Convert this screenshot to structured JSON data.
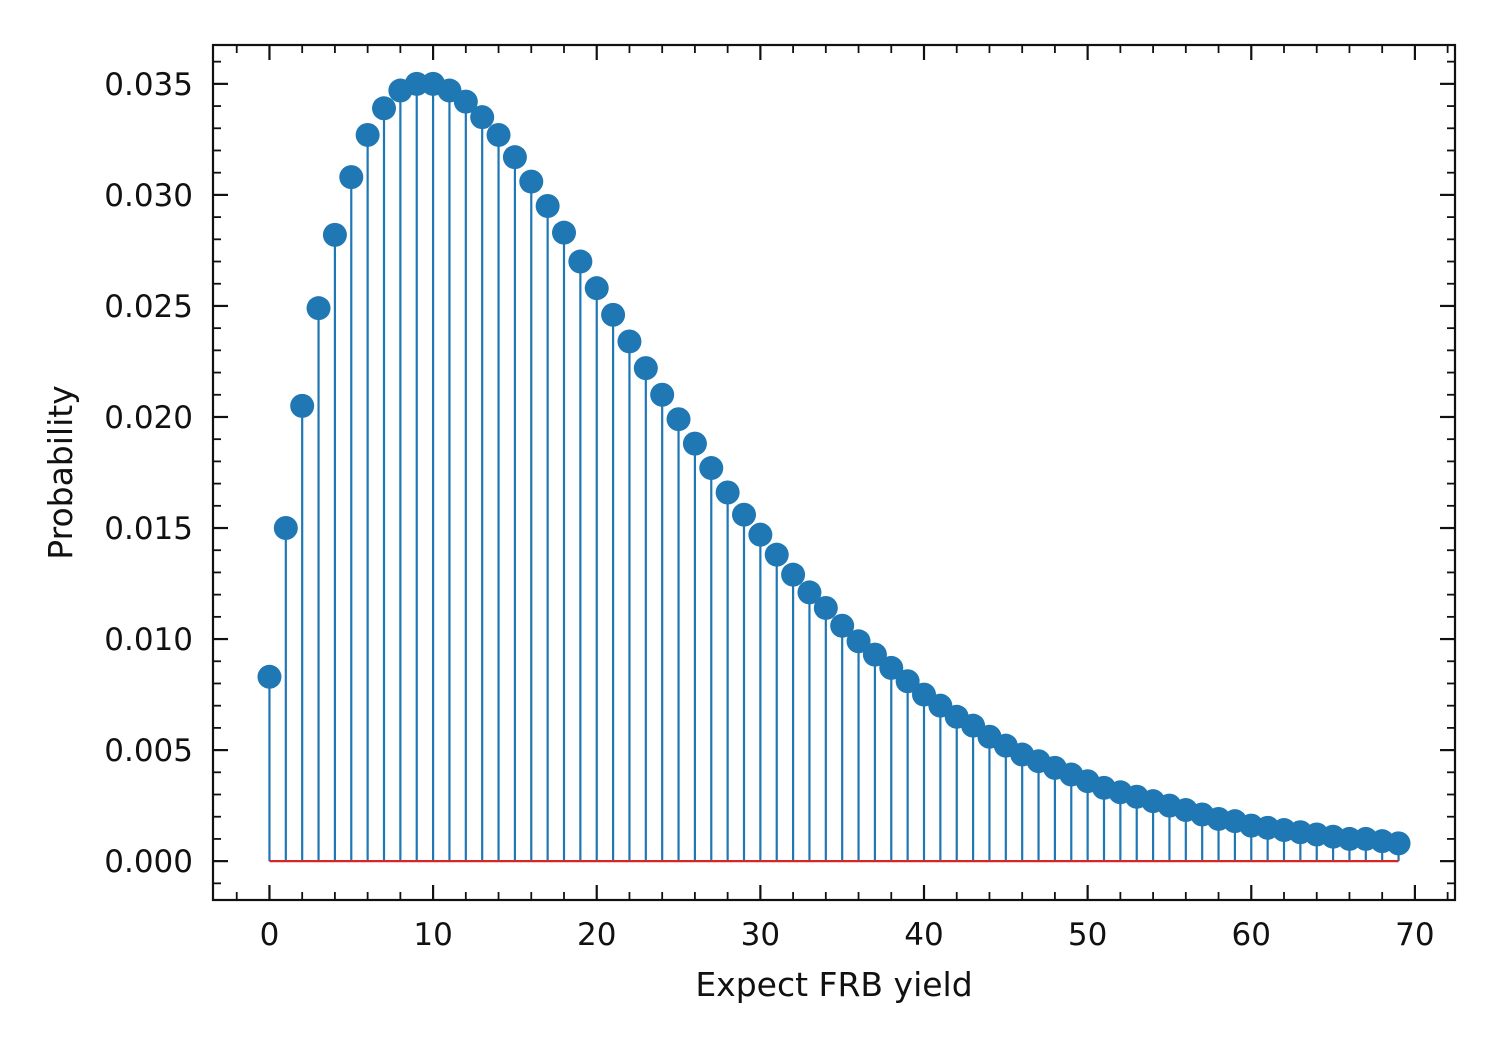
{
  "chart_data": {
    "type": "stem",
    "title": "",
    "xlabel": "Expect FRB yield",
    "ylabel": "Probability",
    "xlim": [
      -3.45,
      72.45
    ],
    "ylim": [
      -0.00175,
      0.03675
    ],
    "x_ticks": [
      0,
      10,
      20,
      30,
      40,
      50,
      60,
      70
    ],
    "x_tick_labels": [
      "0",
      "10",
      "20",
      "30",
      "40",
      "50",
      "60",
      "70"
    ],
    "y_ticks": [
      0.0,
      0.005,
      0.01,
      0.015,
      0.02,
      0.025,
      0.03,
      0.035
    ],
    "y_tick_labels": [
      "0.000",
      "0.005",
      "0.010",
      "0.015",
      "0.020",
      "0.025",
      "0.030",
      "0.035"
    ],
    "grid": false,
    "legend": "none",
    "baseline": 0,
    "colors": {
      "stem": "#1f77b4",
      "marker": "#1f77b4",
      "baseline": "#d62728",
      "axis": "#111111"
    },
    "x": [
      0,
      1,
      2,
      3,
      4,
      5,
      6,
      7,
      8,
      9,
      10,
      11,
      12,
      13,
      14,
      15,
      16,
      17,
      18,
      19,
      20,
      21,
      22,
      23,
      24,
      25,
      26,
      27,
      28,
      29,
      30,
      31,
      32,
      33,
      34,
      35,
      36,
      37,
      38,
      39,
      40,
      41,
      42,
      43,
      44,
      45,
      46,
      47,
      48,
      49,
      50,
      51,
      52,
      53,
      54,
      55,
      56,
      57,
      58,
      59,
      60,
      61,
      62,
      63,
      64,
      65,
      66,
      67,
      68,
      69
    ],
    "values": [
      0.0083,
      0.015,
      0.0205,
      0.0249,
      0.0282,
      0.0308,
      0.0327,
      0.0339,
      0.0347,
      0.035,
      0.035,
      0.0347,
      0.0342,
      0.0335,
      0.0327,
      0.0317,
      0.0306,
      0.0295,
      0.0283,
      0.027,
      0.0258,
      0.0246,
      0.0234,
      0.0222,
      0.021,
      0.0199,
      0.0188,
      0.0177,
      0.0166,
      0.0156,
      0.0147,
      0.0138,
      0.0129,
      0.0121,
      0.0114,
      0.0106,
      0.0099,
      0.0093,
      0.0087,
      0.0081,
      0.0075,
      0.007,
      0.0065,
      0.0061,
      0.0056,
      0.0052,
      0.0048,
      0.0045,
      0.0042,
      0.0039,
      0.0036,
      0.0033,
      0.0031,
      0.0029,
      0.0027,
      0.0025,
      0.0023,
      0.0021,
      0.0019,
      0.0018,
      0.0016,
      0.0015,
      0.0014,
      0.0013,
      0.0012,
      0.0011,
      0.001,
      0.001,
      0.0009,
      0.0008
    ]
  }
}
